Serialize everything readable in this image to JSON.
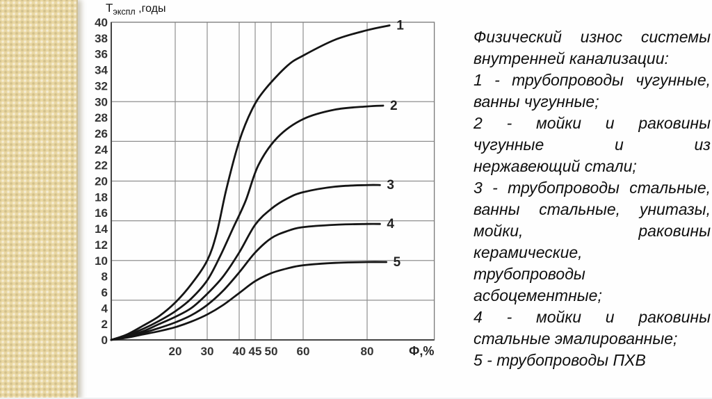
{
  "page": {
    "background": "#fefefe",
    "strip_color": "#e9d7a2",
    "strip_edge_color": "#cfc199",
    "bottom_edge_color": "#eef0f3"
  },
  "chart_data": {
    "type": "line",
    "title": "Физический износ системы внутренней канализации",
    "xlabel": "Ф,%",
    "ylabel_base": "Т",
    "ylabel_sub": "экспл",
    "ylabel_rest": " ,годы",
    "xlim": [
      0,
      101
    ],
    "ylim": [
      0,
      40
    ],
    "x_ticks": [
      20,
      30,
      40,
      45,
      50,
      60,
      80
    ],
    "y_ticks": [
      0,
      2,
      4,
      6,
      8,
      10,
      12,
      14,
      16,
      18,
      20,
      22,
      24,
      26,
      28,
      30,
      32,
      34,
      36,
      38,
      40
    ],
    "x_gridlines": [
      20,
      30,
      40,
      45,
      50,
      60,
      80
    ],
    "y_gridlines": [
      5,
      10,
      15,
      20,
      25,
      30
    ],
    "grid_on": true,
    "legend_position": "right-text-block",
    "grid_color": "#8f8f8f",
    "frame_color": "#777777",
    "axis_color": "#444444",
    "curve_color": "#151515",
    "tick_color": "#333333",
    "series": [
      {
        "name": "1",
        "points": [
          [
            0,
            0
          ],
          [
            5,
            0.7
          ],
          [
            10,
            1.8
          ],
          [
            15,
            3
          ],
          [
            20,
            4.7
          ],
          [
            25,
            7
          ],
          [
            30,
            10
          ],
          [
            33,
            13.5
          ],
          [
            36,
            19
          ],
          [
            40,
            25
          ],
          [
            44,
            29
          ],
          [
            48,
            31.5
          ],
          [
            55,
            34.5
          ],
          [
            60,
            35.8
          ],
          [
            70,
            37.8
          ],
          [
            80,
            39
          ],
          [
            87,
            39.6
          ]
        ]
      },
      {
        "name": "2",
        "points": [
          [
            0,
            0
          ],
          [
            5,
            0.6
          ],
          [
            10,
            1.4
          ],
          [
            15,
            2.4
          ],
          [
            20,
            3.6
          ],
          [
            25,
            5.2
          ],
          [
            30,
            7.5
          ],
          [
            34,
            10.5
          ],
          [
            38,
            14
          ],
          [
            42,
            17.5
          ],
          [
            46,
            22
          ],
          [
            52,
            25.5
          ],
          [
            60,
            27.8
          ],
          [
            70,
            29
          ],
          [
            80,
            29.4
          ],
          [
            85,
            29.5
          ]
        ]
      },
      {
        "name": "3",
        "points": [
          [
            0,
            0
          ],
          [
            5,
            0.5
          ],
          [
            10,
            1.1
          ],
          [
            15,
            2
          ],
          [
            20,
            2.9
          ],
          [
            25,
            4
          ],
          [
            30,
            5.8
          ],
          [
            35,
            8
          ],
          [
            40,
            11
          ],
          [
            45,
            14.5
          ],
          [
            50,
            16.5
          ],
          [
            55,
            17.8
          ],
          [
            60,
            18.6
          ],
          [
            70,
            19.3
          ],
          [
            80,
            19.5
          ],
          [
            84,
            19.5
          ]
        ]
      },
      {
        "name": "4",
        "points": [
          [
            0,
            0
          ],
          [
            5,
            0.4
          ],
          [
            10,
            0.9
          ],
          [
            15,
            1.5
          ],
          [
            20,
            2.2
          ],
          [
            25,
            3.1
          ],
          [
            30,
            4.4
          ],
          [
            35,
            6.2
          ],
          [
            40,
            8.5
          ],
          [
            45,
            11
          ],
          [
            50,
            12.8
          ],
          [
            55,
            13.7
          ],
          [
            60,
            14.2
          ],
          [
            70,
            14.5
          ],
          [
            80,
            14.6
          ],
          [
            84,
            14.6
          ]
        ]
      },
      {
        "name": "5",
        "points": [
          [
            0,
            0
          ],
          [
            5,
            0.3
          ],
          [
            10,
            0.7
          ],
          [
            15,
            1.1
          ],
          [
            20,
            1.6
          ],
          [
            25,
            2.3
          ],
          [
            30,
            3.2
          ],
          [
            35,
            4.4
          ],
          [
            40,
            5.9
          ],
          [
            45,
            7.4
          ],
          [
            50,
            8.4
          ],
          [
            55,
            9
          ],
          [
            60,
            9.4
          ],
          [
            70,
            9.7
          ],
          [
            80,
            9.8
          ],
          [
            86,
            9.8
          ]
        ]
      }
    ]
  },
  "legend": {
    "paragraphs": [
      {
        "lines": [
          "Физический износ системы",
          "внутренней канализации:"
        ]
      },
      {
        "lines": [
          "1 - трубопроводы чугунные,",
          "ванны чугунные;"
        ]
      },
      {
        "lines": [
          "2 - мойки и раковины",
          "чугунные и из",
          "нержавеющий стали;"
        ]
      },
      {
        "lines": [
          "3 - трубопроводы стальные,",
          "ванны стальные, унитазы,",
          "мойки, раковины",
          "керамические,",
          "трубопроводы",
          "асбоцементные;"
        ]
      },
      {
        "lines": [
          "4 - мойки и раковины",
          "стальные эмалированные;"
        ]
      },
      {
        "lines": [
          "5 - трубопроводы ПХВ"
        ]
      }
    ]
  }
}
